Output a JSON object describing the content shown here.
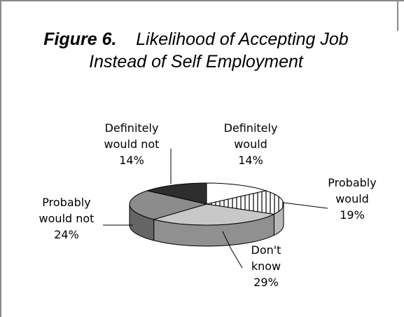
{
  "chart_data": {
    "type": "pie",
    "title_prefix": "Figure 6.",
    "title": "Likelihood of Accepting Job Instead of Self Employment",
    "slices": [
      {
        "label_lines": [
          "Definitely",
          "would"
        ],
        "value": 14,
        "value_text": "14%"
      },
      {
        "label_lines": [
          "Probably",
          "would"
        ],
        "value": 19,
        "value_text": "19%"
      },
      {
        "label_lines": [
          "Don't",
          "know"
        ],
        "value": 29,
        "value_text": "29%"
      },
      {
        "label_lines": [
          "Probably",
          "would not"
        ],
        "value": 24,
        "value_text": "24%"
      },
      {
        "label_lines": [
          "Definitely",
          "would not"
        ],
        "value": 14,
        "value_text": "14%"
      }
    ],
    "slice_fills": [
      "#ffffff",
      "hatch",
      "#c8c8c8",
      "#8c8c8c",
      "#2e2e2e"
    ],
    "style": "3d",
    "legend": "none"
  }
}
